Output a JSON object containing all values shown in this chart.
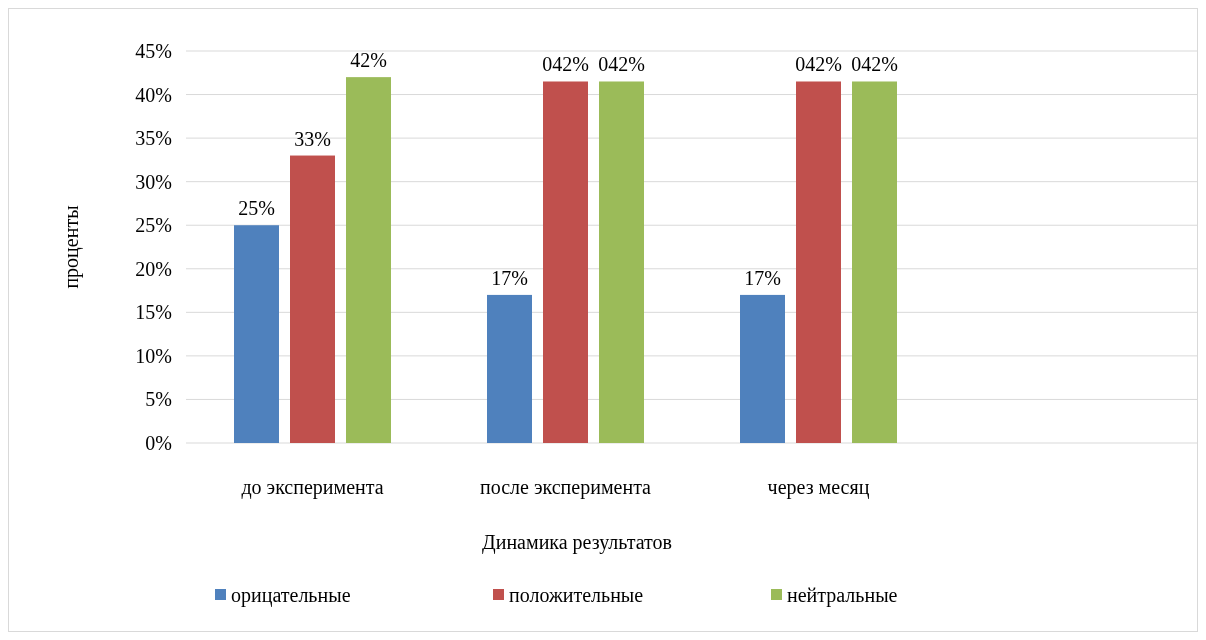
{
  "chart_data": {
    "type": "bar",
    "xlabel": "Динамика результатов",
    "ylabel": "проценты",
    "categories": [
      "до эксперимента",
      "после эксперимента",
      "через месяц",
      null
    ],
    "series": [
      {
        "name": "орицательные",
        "color": "#4f81bd",
        "values": [
          25,
          17,
          17,
          null
        ],
        "value_labels": [
          "25%",
          "17%",
          "17%",
          null
        ]
      },
      {
        "name": "положительные",
        "color": "#c0504d",
        "values": [
          33,
          41.5,
          41.5,
          null
        ],
        "value_labels": [
          "33%",
          "042%",
          "042%",
          null
        ]
      },
      {
        "name": "нейтральные",
        "color": "#9bbb59",
        "values": [
          42,
          41.5,
          41.5,
          null
        ],
        "value_labels": [
          "42%",
          "042%",
          "042%",
          null
        ]
      }
    ],
    "ylim": [
      0,
      45
    ],
    "yticks": [
      {
        "value": 0,
        "label": "0%"
      },
      {
        "value": 5,
        "label": "5%"
      },
      {
        "value": 10,
        "label": "10%"
      },
      {
        "value": 15,
        "label": "15%"
      },
      {
        "value": 20,
        "label": "20%"
      },
      {
        "value": 25,
        "label": "25%"
      },
      {
        "value": 30,
        "label": "30%"
      },
      {
        "value": 35,
        "label": "35%"
      },
      {
        "value": 40,
        "label": "40%"
      },
      {
        "value": 45,
        "label": "45%"
      }
    ],
    "grid": "y",
    "legend": "bottom"
  }
}
